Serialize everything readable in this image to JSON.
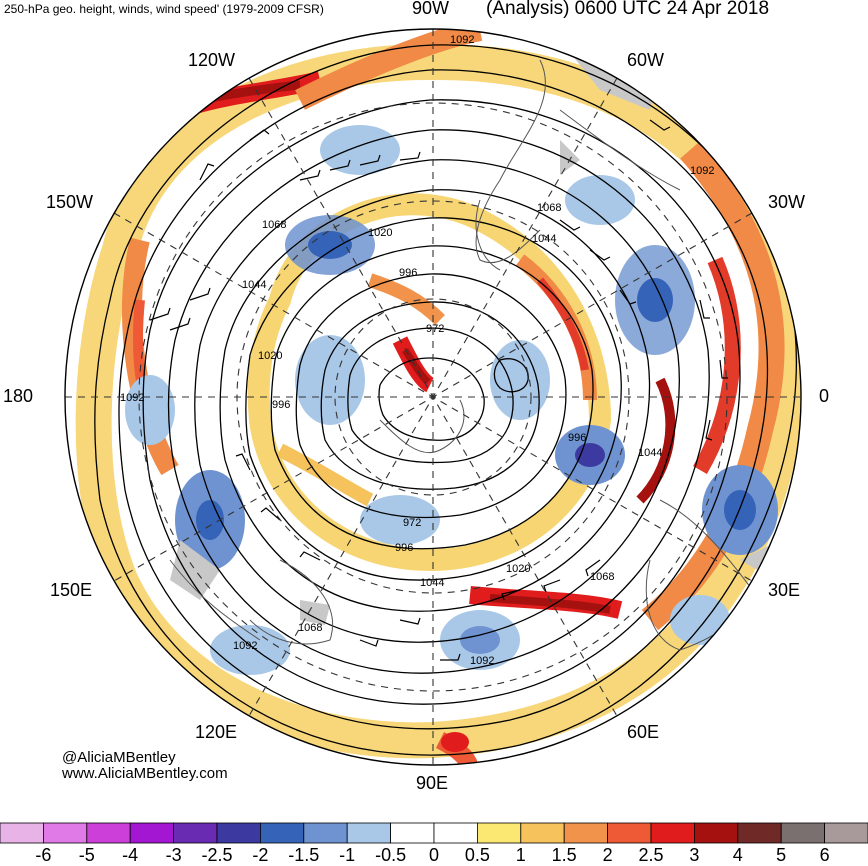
{
  "header": {
    "left_title": "250-hPa geo. height, winds, wind speed' (1979-2009 CFSR)",
    "right_title": "(Analysis) 0600 UTC 24 Apr 2018"
  },
  "longitude_labels": {
    "90W": "90W",
    "120W": "120W",
    "60W": "60W",
    "150W": "150W",
    "30W": "30W",
    "180": "180",
    "0": "0",
    "150E": "150E",
    "30E": "30E",
    "120E": "120E",
    "60E": "60E",
    "90E": "90E"
  },
  "contour_labels": [
    "1092",
    "1092",
    "1068",
    "1044",
    "1020",
    "996",
    "972",
    "1068",
    "1044",
    "1020",
    "996",
    "1092",
    "996",
    "1044",
    "972",
    "996",
    "1044",
    "1020",
    "1068",
    "1068",
    "1092",
    "1092"
  ],
  "credits": {
    "twitter": "@AliciaMBentley",
    "website": "www.AliciaMBentley.com"
  },
  "colorbar": {
    "ticks": [
      "-6",
      "-5",
      "-4",
      "-3",
      "-2.5",
      "-2",
      "-1.5",
      "-1",
      "-0.5",
      "0",
      "0.5",
      "1",
      "1.5",
      "2",
      "2.5",
      "3",
      "4",
      "5",
      "6"
    ],
    "colors": [
      "#e8b4e8",
      "#e07ae6",
      "#cc3fd8",
      "#a417d2",
      "#6a2bb3",
      "#3c3aa0",
      "#3463b8",
      "#6e93d0",
      "#a9c8e8",
      "#ffffff",
      "#ffffff",
      "#fbe873",
      "#f5c25b",
      "#f1934b",
      "#ee5a36",
      "#e01c1c",
      "#a4110f",
      "#6f2a28",
      "#7a7070",
      "#a89a9a"
    ]
  }
}
